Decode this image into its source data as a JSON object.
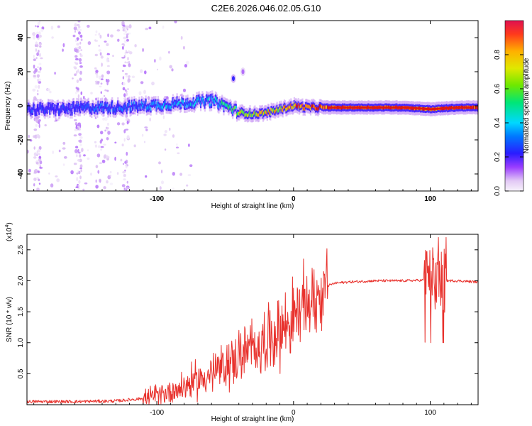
{
  "title": "C2E6.2026.046.02.05.G10",
  "colors": {
    "line": "#e8322d",
    "axis": "#000000",
    "colormap": [
      "#f7f3fb",
      "#d8b8f2",
      "#9a3dff",
      "#3a1cff",
      "#2060ff",
      "#00d8ff",
      "#00e676",
      "#c8e800",
      "#ffb000",
      "#ff3a1c",
      "#d40a0a"
    ]
  },
  "chart_data": [
    {
      "type": "heatmap",
      "title": "",
      "xlabel": "Height of straight line (km)",
      "ylabel": "Frequency (Hz)",
      "xlim": [
        -195,
        135
      ],
      "ylim": [
        -50,
        50
      ],
      "x_ticks": [
        -100,
        0,
        100
      ],
      "x_tick_labels": [
        "-100",
        "0",
        "100"
      ],
      "y_ticks": [
        -40,
        -20,
        0,
        20,
        40
      ],
      "y_tick_labels": [
        "-40",
        "-20",
        "0",
        "20",
        "40"
      ],
      "ridge": {
        "description": "dominant spectral line",
        "x": [
          -195,
          -170,
          -150,
          -130,
          -110,
          -90,
          -75,
          -60,
          -50,
          -40,
          -30,
          -20,
          -10,
          0,
          10,
          20,
          40,
          60,
          80,
          100,
          120,
          135
        ],
        "y": [
          -2,
          -2,
          -1,
          -1,
          0,
          1,
          2,
          3,
          0,
          -4,
          -5,
          -4,
          -2,
          0,
          -1,
          -1,
          -1,
          -1,
          -1,
          -2,
          -1,
          -1
        ],
        "amplitude": [
          0.35,
          0.35,
          0.4,
          0.4,
          0.45,
          0.5,
          0.5,
          0.5,
          0.6,
          0.7,
          0.75,
          0.8,
          0.85,
          0.9,
          0.95,
          1.0,
          1.0,
          1.0,
          1.0,
          0.95,
          1.0,
          1.0
        ]
      },
      "blobs": [
        {
          "x": -44,
          "y": 16,
          "amplitude": 0.2
        },
        {
          "x": -37,
          "y": 20,
          "amplitude": 0.1
        }
      ],
      "colorbar": {
        "label": "Normalized spectral amplitude",
        "range": [
          0,
          1
        ],
        "ticks": [
          0.0,
          0.2,
          0.4,
          0.6,
          0.8
        ],
        "tick_labels": [
          "0.0",
          "0.2",
          "0.4",
          "0.6",
          "0.8"
        ]
      }
    },
    {
      "type": "line",
      "title": "",
      "xlabel": "Height of straight line (km)",
      "ylabel": "SNR (10 * v/v)",
      "y_multiplier": "(x10",
      "y_multiplier_exp": "4",
      "xlim": [
        -195,
        135
      ],
      "ylim": [
        0,
        2.75
      ],
      "x_ticks": [
        -100,
        0,
        100
      ],
      "x_tick_labels": [
        "-100",
        "0",
        "100"
      ],
      "y_ticks": [
        0.5,
        1.0,
        1.5,
        2.0,
        2.5
      ],
      "y_tick_labels": [
        "0.5",
        "1.0",
        "1.5",
        "2.0",
        "2.5"
      ],
      "series": [
        {
          "name": "SNR",
          "envelope": {
            "x": [
              -195,
              -160,
              -130,
              -110,
              -100,
              -90,
              -80,
              -70,
              -60,
              -50,
              -40,
              -30,
              -20,
              -10,
              0,
              5,
              10,
              15,
              20,
              25,
              30,
              40,
              60,
              80,
              95,
              100,
              105,
              110,
              115,
              120,
              135
            ],
            "y": [
              0.05,
              0.05,
              0.06,
              0.1,
              0.15,
              0.22,
              0.3,
              0.4,
              0.5,
              0.62,
              0.78,
              0.9,
              1.05,
              1.2,
              1.4,
              1.5,
              1.65,
              1.7,
              1.8,
              1.92,
              1.96,
              1.98,
              2.0,
              2.0,
              2.01,
              2.0,
              2.0,
              2.0,
              2.0,
              2.0,
              1.98
            ]
          }
        }
      ]
    }
  ]
}
